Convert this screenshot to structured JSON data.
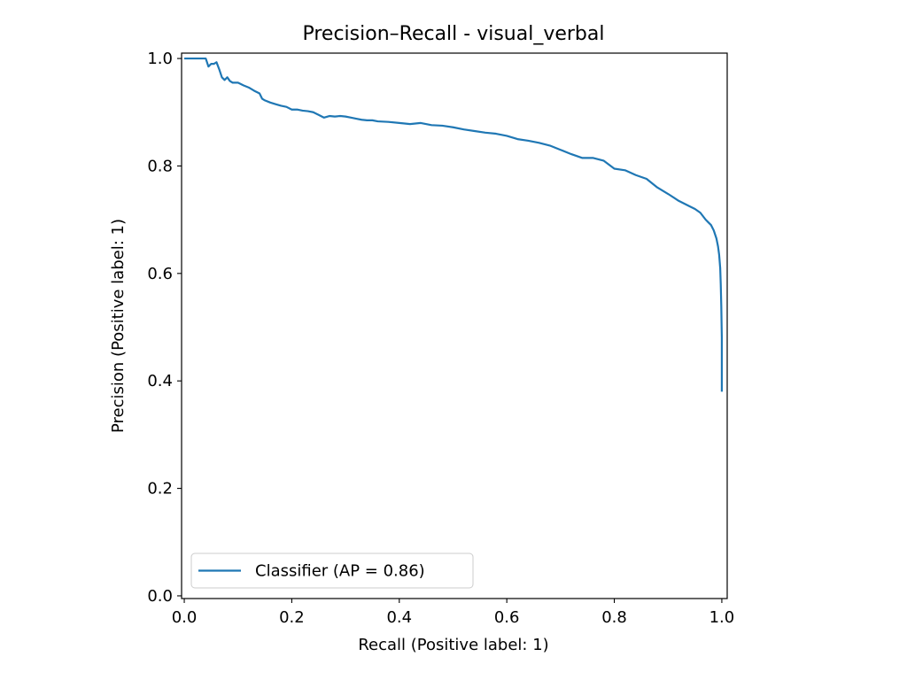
{
  "chart_data": {
    "type": "line",
    "title": "Precision–Recall - visual_verbal",
    "xlabel": "Recall (Positive label: 1)",
    "ylabel": "Precision (Positive label: 1)",
    "xlim": [
      -0.005,
      1.01
    ],
    "ylim": [
      -0.005,
      1.01
    ],
    "xticks": [
      0.0,
      0.2,
      0.4,
      0.6,
      0.8,
      1.0
    ],
    "xtick_labels": [
      "0.0",
      "0.2",
      "0.4",
      "0.6",
      "0.8",
      "1.0"
    ],
    "yticks": [
      0.0,
      0.2,
      0.4,
      0.6,
      0.8,
      1.0
    ],
    "ytick_labels": [
      "0.0",
      "0.2",
      "0.4",
      "0.6",
      "0.8",
      "1.0"
    ],
    "grid": false,
    "legend_position": "lower-left",
    "series": [
      {
        "name": "Classifier (AP = 0.86)",
        "color": "#1f77b4",
        "x": [
          0.0,
          0.04,
          0.045,
          0.05,
          0.055,
          0.06,
          0.065,
          0.07,
          0.075,
          0.08,
          0.085,
          0.09,
          0.1,
          0.11,
          0.12,
          0.13,
          0.14,
          0.145,
          0.15,
          0.16,
          0.17,
          0.18,
          0.19,
          0.2,
          0.21,
          0.22,
          0.23,
          0.24,
          0.25,
          0.26,
          0.27,
          0.28,
          0.29,
          0.3,
          0.31,
          0.32,
          0.33,
          0.34,
          0.35,
          0.36,
          0.38,
          0.4,
          0.42,
          0.44,
          0.46,
          0.48,
          0.5,
          0.52,
          0.54,
          0.56,
          0.58,
          0.6,
          0.62,
          0.64,
          0.66,
          0.68,
          0.7,
          0.72,
          0.74,
          0.76,
          0.78,
          0.8,
          0.82,
          0.84,
          0.86,
          0.88,
          0.9,
          0.92,
          0.94,
          0.95,
          0.96,
          0.97,
          0.975,
          0.98,
          0.985,
          0.99,
          0.993,
          0.995,
          0.997,
          0.998,
          0.999,
          1.0,
          1.0
        ],
        "y": [
          1.0,
          1.0,
          0.985,
          0.99,
          0.99,
          0.993,
          0.98,
          0.965,
          0.96,
          0.965,
          0.958,
          0.955,
          0.955,
          0.95,
          0.946,
          0.94,
          0.935,
          0.925,
          0.922,
          0.918,
          0.915,
          0.912,
          0.91,
          0.905,
          0.905,
          0.903,
          0.902,
          0.9,
          0.895,
          0.89,
          0.893,
          0.892,
          0.893,
          0.892,
          0.89,
          0.888,
          0.886,
          0.885,
          0.885,
          0.883,
          0.882,
          0.88,
          0.878,
          0.88,
          0.876,
          0.875,
          0.872,
          0.868,
          0.865,
          0.862,
          0.86,
          0.856,
          0.85,
          0.847,
          0.843,
          0.838,
          0.83,
          0.822,
          0.815,
          0.815,
          0.81,
          0.795,
          0.792,
          0.783,
          0.776,
          0.76,
          0.748,
          0.735,
          0.725,
          0.72,
          0.713,
          0.7,
          0.695,
          0.69,
          0.68,
          0.665,
          0.65,
          0.635,
          0.61,
          0.58,
          0.54,
          0.48,
          0.38
        ]
      }
    ]
  }
}
